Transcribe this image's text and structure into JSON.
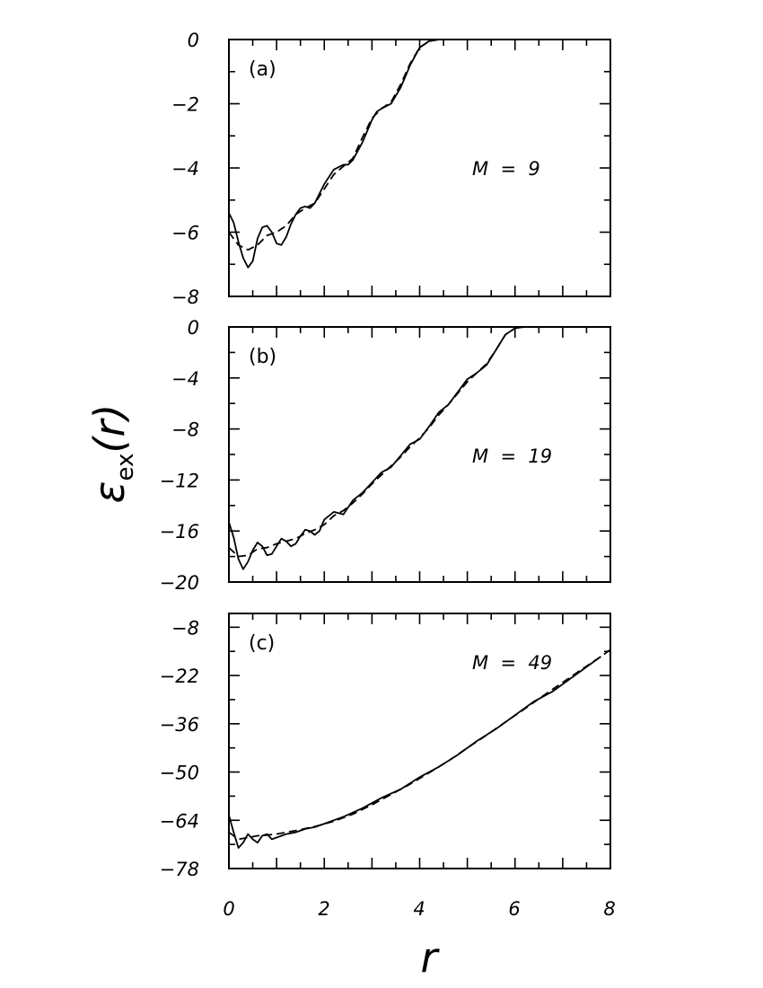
{
  "chart_data": [
    {
      "type": "line",
      "panel_label": "(a)",
      "annotation": "M  =  9",
      "xlim": [
        0,
        8
      ],
      "ylim": [
        -8,
        0
      ],
      "yticks": [
        "0",
        "−2",
        "−4",
        "−6",
        "−8"
      ],
      "ytick_values": [
        0,
        -2,
        -4,
        -6,
        -8
      ],
      "series": [
        {
          "style": "solid",
          "x": [
            0.0,
            0.1,
            0.2,
            0.3,
            0.4,
            0.5,
            0.6,
            0.7,
            0.8,
            0.9,
            1.0,
            1.1,
            1.2,
            1.3,
            1.4,
            1.5,
            1.6,
            1.7,
            1.8,
            1.9,
            2.0,
            2.2,
            2.4,
            2.5,
            2.6,
            2.8,
            3.0,
            3.1,
            3.2,
            3.4,
            3.6,
            3.8,
            4.0,
            4.2,
            4.4,
            4.6,
            4.8,
            5.0,
            6.0,
            8.0
          ],
          "y": [
            -5.4,
            -5.7,
            -6.3,
            -6.8,
            -7.1,
            -6.9,
            -6.2,
            -5.85,
            -5.8,
            -6.0,
            -6.35,
            -6.4,
            -6.15,
            -5.75,
            -5.45,
            -5.25,
            -5.2,
            -5.25,
            -5.1,
            -4.8,
            -4.5,
            -4.05,
            -3.9,
            -3.9,
            -3.75,
            -3.2,
            -2.5,
            -2.25,
            -2.15,
            -2.0,
            -1.5,
            -0.8,
            -0.25,
            -0.05,
            0.0,
            0.0,
            0.0,
            0.0,
            0.0,
            0.0
          ]
        },
        {
          "style": "dashed",
          "x": [
            0.0,
            0.2,
            0.4,
            0.6,
            0.8,
            1.0,
            1.2,
            1.4,
            1.6,
            1.8,
            2.0,
            2.2,
            2.4,
            2.6,
            2.8,
            3.0,
            3.2,
            3.4,
            3.6,
            3.8,
            4.0,
            4.2,
            4.4,
            4.6,
            5.0,
            6.0,
            8.0
          ],
          "y": [
            -6.0,
            -6.4,
            -6.55,
            -6.4,
            -6.1,
            -6.0,
            -5.8,
            -5.45,
            -5.25,
            -5.1,
            -4.65,
            -4.2,
            -3.95,
            -3.7,
            -3.05,
            -2.45,
            -2.15,
            -1.95,
            -1.4,
            -0.75,
            -0.25,
            -0.05,
            0.0,
            0.0,
            0.0,
            0.0,
            0.0
          ]
        }
      ]
    },
    {
      "type": "line",
      "panel_label": "(b)",
      "annotation": "M  =  19",
      "xlim": [
        0,
        8
      ],
      "ylim": [
        -20,
        0
      ],
      "yticks": [
        "0",
        "−4",
        "−8",
        "−12",
        "−16",
        "−20"
      ],
      "ytick_values": [
        0,
        -4,
        -8,
        -12,
        -16,
        -20
      ],
      "series": [
        {
          "style": "solid",
          "x": [
            0.0,
            0.1,
            0.2,
            0.3,
            0.4,
            0.5,
            0.6,
            0.7,
            0.8,
            0.9,
            1.0,
            1.1,
            1.2,
            1.3,
            1.4,
            1.5,
            1.6,
            1.7,
            1.8,
            1.9,
            2.0,
            2.2,
            2.4,
            2.6,
            2.8,
            3.0,
            3.2,
            3.4,
            3.6,
            3.8,
            4.0,
            4.2,
            4.4,
            4.6,
            4.8,
            5.0,
            5.2,
            5.4,
            5.6,
            5.8,
            6.0,
            6.2,
            6.4,
            6.6,
            8.0
          ],
          "y": [
            -15.3,
            -16.5,
            -18.2,
            -19.0,
            -18.4,
            -17.5,
            -16.9,
            -17.2,
            -17.9,
            -17.8,
            -17.2,
            -16.6,
            -16.8,
            -17.2,
            -17.0,
            -16.4,
            -15.9,
            -16.0,
            -16.3,
            -16.0,
            -15.1,
            -14.5,
            -14.7,
            -13.6,
            -13.0,
            -12.2,
            -11.4,
            -11.0,
            -10.1,
            -9.2,
            -8.8,
            -7.8,
            -6.7,
            -6.1,
            -5.1,
            -4.1,
            -3.6,
            -3.0,
            -1.8,
            -0.6,
            -0.1,
            0.0,
            0.0,
            0.0,
            0.0
          ]
        },
        {
          "style": "dashed",
          "x": [
            0.0,
            0.2,
            0.4,
            0.6,
            0.8,
            1.0,
            1.2,
            1.4,
            1.6,
            1.8,
            2.0,
            2.2,
            2.4,
            2.6,
            2.8,
            3.0,
            3.2,
            3.4,
            3.6,
            3.8,
            4.0,
            4.2,
            4.4,
            4.6,
            4.8,
            5.0,
            5.2,
            5.4,
            5.6,
            5.8,
            6.0,
            6.2,
            6.4,
            8.0
          ],
          "y": [
            -17.3,
            -18.0,
            -17.9,
            -17.4,
            -17.3,
            -17.0,
            -16.8,
            -16.6,
            -16.2,
            -15.9,
            -15.5,
            -14.8,
            -14.4,
            -13.8,
            -13.1,
            -12.3,
            -11.6,
            -10.9,
            -10.2,
            -9.4,
            -8.7,
            -7.9,
            -6.9,
            -6.1,
            -5.2,
            -4.3,
            -3.6,
            -2.9,
            -1.8,
            -0.6,
            -0.1,
            0.0,
            0.0,
            0.0
          ]
        }
      ]
    },
    {
      "type": "line",
      "panel_label": "(c)",
      "annotation": "M  =  49",
      "xlim": [
        0,
        8
      ],
      "ylim": [
        -78,
        -4
      ],
      "yticks": [
        "−8",
        "−22",
        "−36",
        "−50",
        "−64",
        "−78"
      ],
      "ytick_values": [
        -8,
        -22,
        -36,
        -50,
        -64,
        -78
      ],
      "series": [
        {
          "style": "solid",
          "x": [
            0.0,
            0.1,
            0.2,
            0.3,
            0.4,
            0.5,
            0.6,
            0.7,
            0.8,
            0.9,
            1.0,
            1.2,
            1.4,
            1.6,
            1.8,
            2.0,
            2.4,
            2.8,
            3.2,
            3.6,
            4.0,
            4.4,
            4.8,
            5.2,
            5.6,
            6.0,
            6.4,
            6.8,
            7.2,
            7.6,
            7.8
          ],
          "y": [
            -62.5,
            -67.5,
            -72.0,
            -70.5,
            -68.0,
            -69.5,
            -70.5,
            -68.5,
            -68.0,
            -69.5,
            -69.0,
            -68.0,
            -67.5,
            -66.5,
            -66.0,
            -65.0,
            -63.0,
            -60.5,
            -57.5,
            -55.0,
            -51.5,
            -48.5,
            -45.0,
            -41.0,
            -37.5,
            -33.5,
            -29.5,
            -26.5,
            -22.5,
            -18.5,
            -16.5
          ]
        },
        {
          "style": "dashed",
          "x": [
            0.0,
            0.2,
            0.4,
            0.6,
            0.8,
            1.0,
            1.4,
            1.8,
            2.2,
            2.6,
            3.0,
            3.4,
            3.8,
            4.2,
            4.6,
            5.0,
            5.4,
            5.8,
            6.2,
            6.6,
            7.0,
            7.4,
            7.8,
            8.0
          ],
          "y": [
            -67.5,
            -69.5,
            -69.0,
            -68.5,
            -68.3,
            -68.0,
            -67.0,
            -65.8,
            -64.3,
            -62.2,
            -59.5,
            -56.5,
            -53.5,
            -50.2,
            -46.8,
            -43.0,
            -39.3,
            -35.5,
            -31.7,
            -27.8,
            -24.0,
            -20.2,
            -16.5,
            -14.5
          ]
        }
      ]
    }
  ],
  "x_ticks": [
    "0",
    "2",
    "4",
    "6",
    "8"
  ],
  "xlabel": "r",
  "ylabel_main": "ε",
  "ylabel_sub": "ex",
  "ylabel_arg": "(r)"
}
